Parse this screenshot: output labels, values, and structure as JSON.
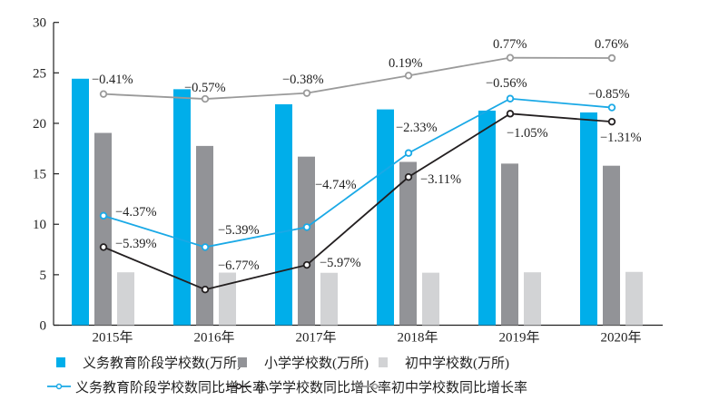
{
  "chart_data": {
    "type": "bar+line",
    "categories": [
      "2015年",
      "2016年",
      "2017年",
      "2018年",
      "2019年",
      "2020年"
    ],
    "ylim": [
      0,
      30
    ],
    "yticks": [
      0,
      5,
      10,
      15,
      20,
      25,
      30
    ],
    "y2lim": [
      -7.93,
      1.92
    ],
    "grid": false,
    "legend_position": "bottom",
    "bar_series": [
      {
        "name": "义务教育阶段学校数(万所)",
        "color": "#00aeea",
        "values": [
          24.42,
          23.38,
          21.89,
          21.38,
          21.26,
          21.08
        ]
      },
      {
        "name": "小学学校数(万所)",
        "color": "#929397",
        "values": [
          19.05,
          17.76,
          16.7,
          16.18,
          16.01,
          15.8
        ]
      },
      {
        "name": "初中学校数(万所)",
        "color": "#d2d3d5",
        "values": [
          5.24,
          5.21,
          5.19,
          5.2,
          5.24,
          5.28
        ]
      }
    ],
    "line_series": [
      {
        "name": "义务教育阶段学校数同比增长率",
        "color": "#1aa9e6",
        "values": [
          -4.37,
          -5.39,
          -4.74,
          -2.33,
          -0.56,
          -0.85
        ],
        "labels": [
          "−4.37%",
          "−5.39%",
          "−4.74%",
          "−2.33%",
          "−0.56%",
          "−0.85%"
        ]
      },
      {
        "name": "小学学校数同比增长率",
        "color": "#231f20",
        "values": [
          -5.39,
          -6.77,
          -5.97,
          -3.11,
          -1.05,
          -1.31
        ],
        "labels": [
          "−5.39%",
          "−6.77%",
          "−5.97%",
          "−3.11%",
          "−1.05%",
          "−1.31%"
        ]
      },
      {
        "name": "初中学校数同比增长率",
        "color": "#9a9a9a",
        "values": [
          -0.41,
          -0.57,
          -0.38,
          0.19,
          0.77,
          0.76
        ],
        "labels": [
          "−0.41%",
          "−0.57%",
          "−0.38%",
          "0.19%",
          "0.77%",
          "0.76%"
        ]
      }
    ]
  }
}
